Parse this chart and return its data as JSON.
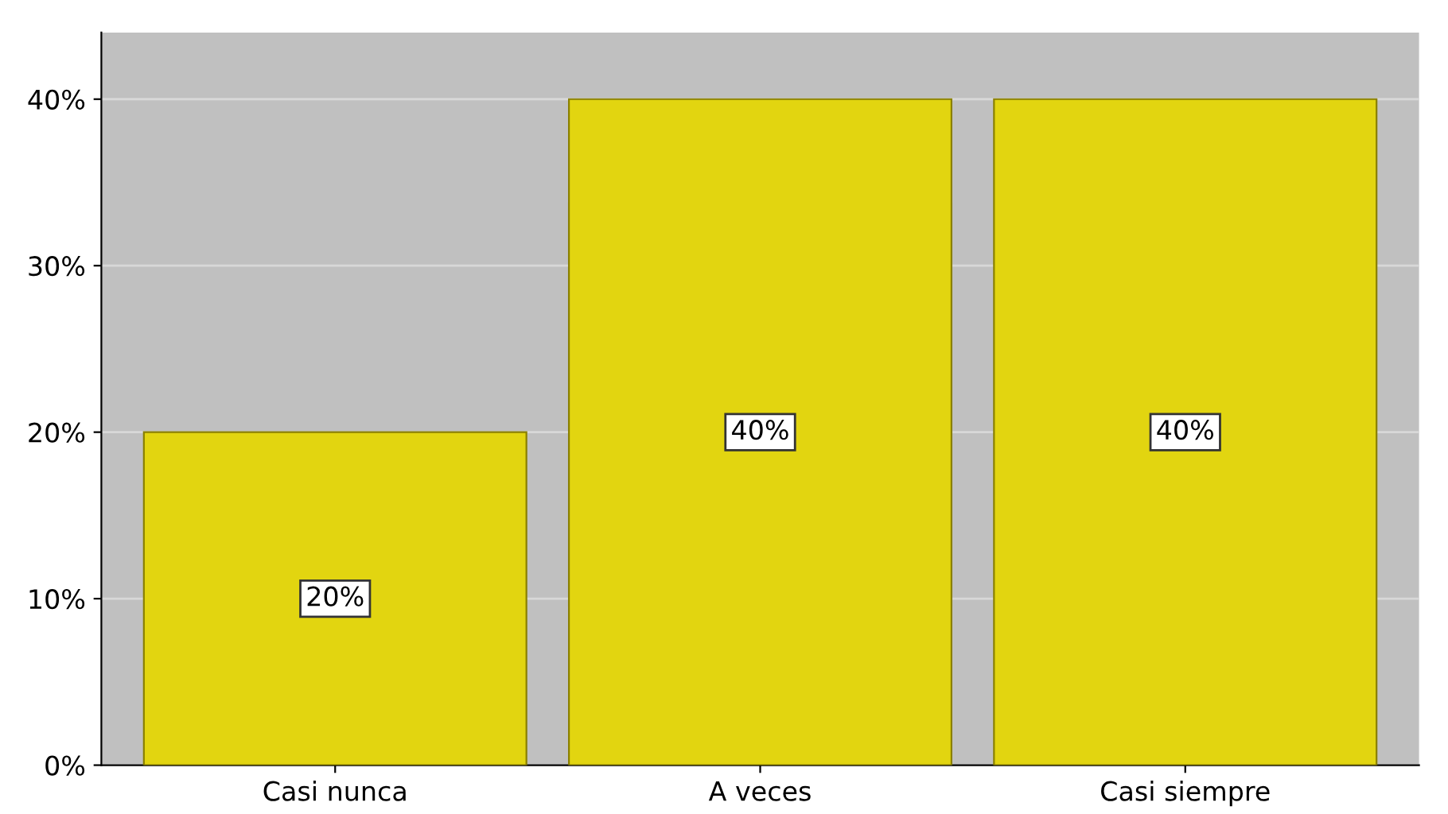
{
  "chart_data": {
    "type": "bar",
    "categories": [
      "Casi nunca",
      "A veces",
      "Casi siempre"
    ],
    "values": [
      20,
      40,
      40
    ],
    "value_labels": [
      "20%",
      "40%",
      "40%"
    ],
    "color": "#e2d510",
    "ylim": [
      0,
      44
    ],
    "yticks": [
      {
        "value": 0,
        "label": "0%"
      },
      {
        "value": 10,
        "label": "10%"
      },
      {
        "value": 20,
        "label": "20%"
      },
      {
        "value": 30,
        "label": "30%"
      },
      {
        "value": 40,
        "label": "40%"
      }
    ],
    "grid": "y"
  }
}
